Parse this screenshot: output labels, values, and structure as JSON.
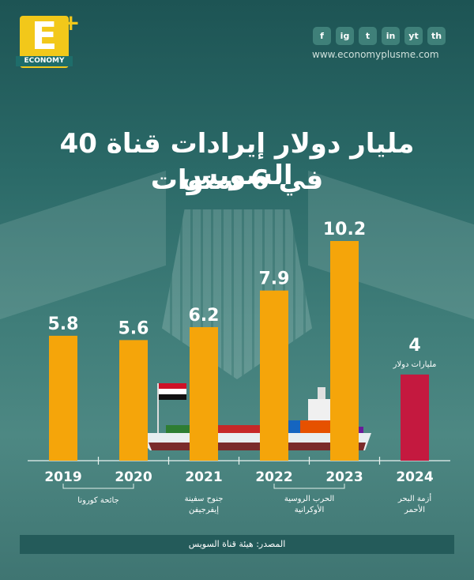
{
  "brand": {
    "logo_letter": "E",
    "logo_plus": "+",
    "logo_word": "ECONOMY",
    "website": "www.economyplusme.com",
    "social": [
      "f",
      "ig",
      "t",
      "in",
      "yt",
      "th"
    ]
  },
  "title_line1": "40 مليار دولار إيرادات قناة السويس",
  "title_line2": "في 6 سنوات",
  "chart_data": {
    "type": "bar",
    "categories": [
      "2019",
      "2020",
      "2021",
      "2022",
      "2023",
      "2024"
    ],
    "values": [
      5.8,
      5.6,
      6.2,
      7.9,
      10.2,
      4
    ],
    "value_labels": [
      "5.8",
      "5.6",
      "6.2",
      "7.9",
      "10.2",
      "4"
    ],
    "unit_note": "مليارات دولار",
    "ylim": [
      0,
      10.2
    ],
    "colors": [
      "#f5a50a",
      "#f5a50a",
      "#f5a50a",
      "#f5a50a",
      "#f5a50a",
      "#c4193f"
    ],
    "annotations": [
      {
        "label": "جائحة كورونا"
      },
      {
        "label": "جنوح سفينة إيفرجيفن"
      },
      {
        "label": "الحرب الروسية الأوكرانية"
      },
      {
        "label": "أزمة البحر الأحمر"
      }
    ]
  },
  "source": "المصدر: هيئة قناة السويس"
}
